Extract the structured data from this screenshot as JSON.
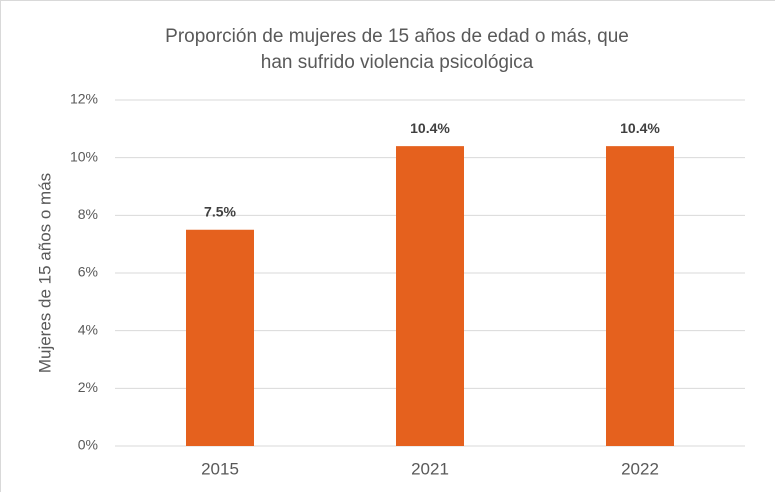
{
  "chart_data": {
    "type": "bar",
    "title": [
      "Proporción de mujeres de 15 años de edad o más, que",
      "han sufrido violencia psicológica"
    ],
    "y_axis_label": "Mujeres de 15 años o más",
    "categories": [
      "2015",
      "2021",
      "2022"
    ],
    "values": [
      7.5,
      10.4,
      10.4
    ],
    "value_labels": [
      "7.5%",
      "10.4%",
      "10.4%"
    ],
    "color": "#e5611e",
    "ylim": [
      0,
      12
    ],
    "yticks": [
      {
        "value": 0,
        "label": "0%"
      },
      {
        "value": 2,
        "label": "2%"
      },
      {
        "value": 4,
        "label": "4%"
      },
      {
        "value": 6,
        "label": "6%"
      },
      {
        "value": 8,
        "label": "8%"
      },
      {
        "value": 10,
        "label": "10%"
      },
      {
        "value": 12,
        "label": "12%"
      }
    ],
    "grid": true
  }
}
